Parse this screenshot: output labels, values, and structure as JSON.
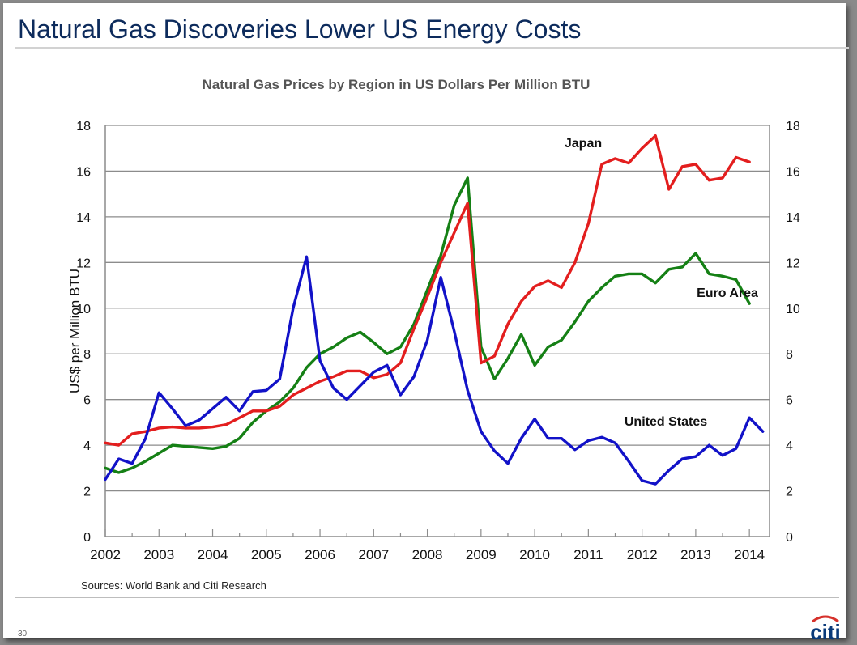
{
  "slide": {
    "title": "Natural Gas Discoveries Lower US Energy Costs",
    "sources": "Sources: World Bank and Citi Research",
    "page_number": "30",
    "logo_text": "citi",
    "logo_icon": "citi-arc-logo"
  },
  "colors": {
    "title": "#0d2b5c",
    "japan": "#e31e1e",
    "euro_area": "#158015",
    "united_states": "#1212c8",
    "logo_arc": "#d6312b",
    "logo_text": "#0a3a7a"
  },
  "chart_data": {
    "type": "line",
    "title": "Natural Gas Prices by Region in US Dollars Per Million BTU",
    "xlabel": "",
    "ylabel": "US$ per Million BTU",
    "ylim": [
      0,
      18
    ],
    "y_ticks": [
      "0",
      "2",
      "4",
      "6",
      "8",
      "10",
      "12",
      "14",
      "16",
      "18"
    ],
    "y_ticks_right": [
      "0",
      "2",
      "4",
      "6",
      "8",
      "10",
      "12",
      "14",
      "16",
      "18"
    ],
    "x_tick_labels": [
      "2002",
      "2003",
      "2004",
      "2005",
      "2006",
      "2007",
      "2008",
      "2009",
      "2010",
      "2011",
      "2012",
      "2013",
      "2014"
    ],
    "x_range": [
      2002.0,
      2014.375
    ],
    "frequency": "quarterly",
    "grid": true,
    "legend": "inline annotations",
    "series": [
      {
        "name": "Japan",
        "label_position": "top-right",
        "x_start": 2002.0,
        "values": [
          4.1,
          4.0,
          4.5,
          4.6,
          4.75,
          4.8,
          4.75,
          4.75,
          4.8,
          4.9,
          5.2,
          5.5,
          5.5,
          5.7,
          6.2,
          6.5,
          6.8,
          7.0,
          7.25,
          7.25,
          6.95,
          7.1,
          7.6,
          9.1,
          10.5,
          12.0,
          13.3,
          14.6,
          7.6,
          7.9,
          9.3,
          10.3,
          10.95,
          11.2,
          10.9,
          12.0,
          13.7,
          16.3,
          16.55,
          16.35,
          17.0,
          17.55,
          15.2,
          16.2,
          16.3,
          15.6,
          15.7,
          16.6,
          16.4
        ]
      },
      {
        "name": "Euro Area",
        "label_position": "right",
        "x_start": 2002.0,
        "values": [
          3.0,
          2.8,
          3.0,
          3.3,
          3.65,
          4.0,
          3.95,
          3.9,
          3.85,
          3.95,
          4.3,
          5.0,
          5.5,
          5.9,
          6.5,
          7.4,
          8.0,
          8.3,
          8.7,
          8.95,
          8.5,
          8.0,
          8.3,
          9.3,
          10.8,
          12.3,
          14.5,
          15.7,
          8.3,
          6.9,
          7.8,
          8.85,
          7.5,
          8.3,
          8.6,
          9.4,
          10.3,
          10.9,
          11.4,
          11.5,
          11.5,
          11.1,
          11.7,
          11.8,
          12.4,
          11.5,
          11.4,
          11.25,
          10.2
        ]
      },
      {
        "name": "United States",
        "label_position": "middle-right",
        "x_start": 2002.0,
        "values": [
          2.5,
          3.4,
          3.2,
          4.3,
          6.3,
          5.6,
          4.85,
          5.1,
          5.6,
          6.1,
          5.5,
          6.35,
          6.4,
          6.9,
          10.0,
          12.25,
          7.7,
          6.5,
          6.0,
          6.6,
          7.2,
          7.5,
          6.2,
          7.0,
          8.6,
          11.35,
          9.0,
          6.4,
          4.6,
          3.75,
          3.2,
          4.3,
          5.15,
          4.3,
          4.3,
          3.8,
          4.2,
          4.35,
          4.1,
          3.3,
          2.45,
          2.3,
          2.9,
          3.4,
          3.5,
          4.0,
          3.55,
          3.85,
          5.2,
          4.6
        ]
      }
    ]
  }
}
